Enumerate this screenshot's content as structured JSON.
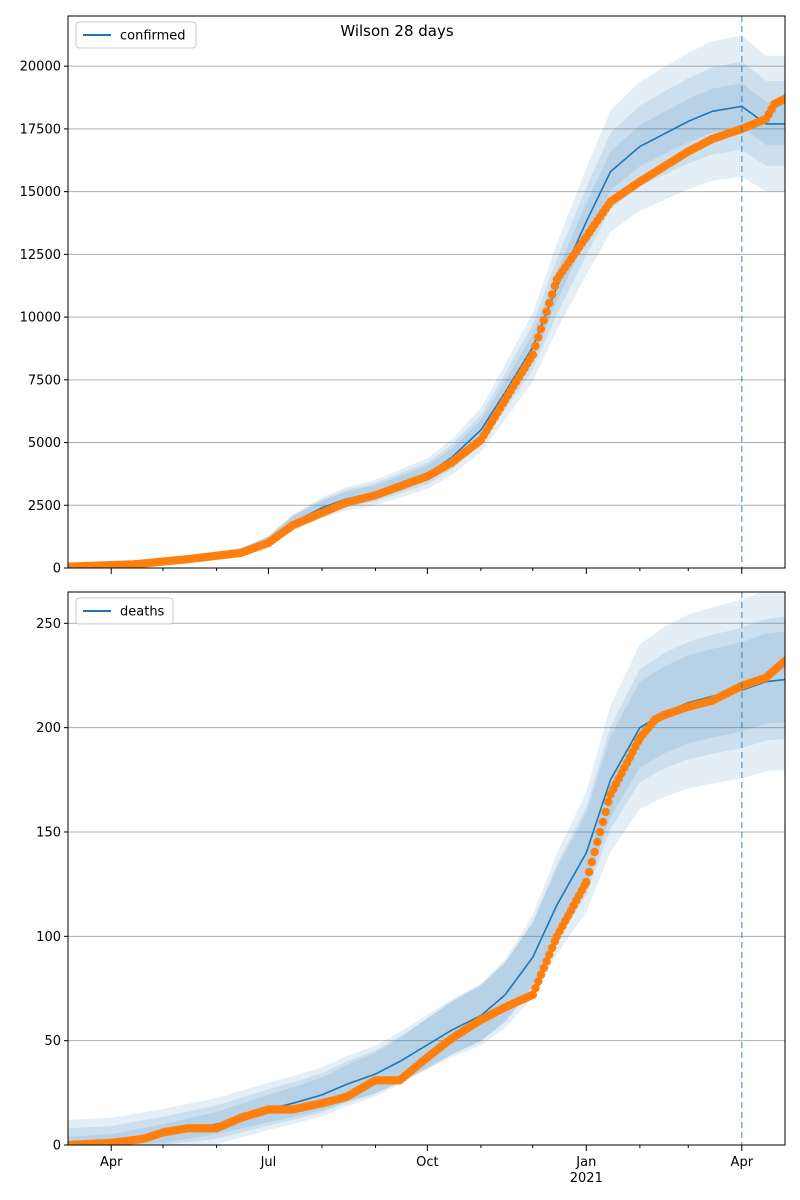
{
  "figure": {
    "title": "Wilson 28 days"
  },
  "colors": {
    "model": "#1f77b4",
    "observed": "#ff7f0e",
    "band": "#1f77b4",
    "grid": "#b0b0b0",
    "forecast_line": "#1f77b4"
  },
  "chart_data": [
    {
      "type": "line",
      "legend": "confirmed",
      "legend_position": "top-left",
      "grid": "horizontal",
      "x_range": [
        "2020-03-07",
        "2021-04-26"
      ],
      "ylim": [
        0,
        22000
      ],
      "y_ticks": [
        0,
        2500,
        5000,
        7500,
        10000,
        12500,
        15000,
        17500,
        20000
      ],
      "y_tick_labels": [
        "0",
        "2500",
        "5000",
        "7500",
        "10000",
        "12500",
        "15000",
        "17500",
        "20000"
      ],
      "forecast_start": "2021-04-01",
      "model_median": {
        "x": [
          "2020-03-07",
          "2020-04-15",
          "2020-05-15",
          "2020-06-15",
          "2020-07-01",
          "2020-07-15",
          "2020-08-01",
          "2020-08-15",
          "2020-09-01",
          "2020-09-15",
          "2020-10-01",
          "2020-10-15",
          "2020-11-01",
          "2020-11-15",
          "2020-12-01",
          "2020-12-15",
          "2021-01-01",
          "2021-01-15",
          "2021-02-01",
          "2021-02-15",
          "2021-03-01",
          "2021-03-15",
          "2021-04-01",
          "2021-04-15",
          "2021-04-26"
        ],
        "values": [
          50,
          120,
          300,
          600,
          1050,
          1800,
          2400,
          2750,
          3000,
          3350,
          3750,
          4400,
          5500,
          7000,
          8800,
          11200,
          13800,
          15800,
          16800,
          17300,
          17800,
          18200,
          18400,
          17700,
          17700
        ]
      },
      "bands_half_width": [
        0.04,
        0.09,
        0.15
      ],
      "observed": {
        "x": [
          "2020-03-07",
          "2020-04-15",
          "2020-05-15",
          "2020-06-15",
          "2020-07-01",
          "2020-07-15",
          "2020-08-01",
          "2020-08-15",
          "2020-09-01",
          "2020-09-15",
          "2020-10-01",
          "2020-10-15",
          "2020-11-01",
          "2020-11-15",
          "2020-12-01",
          "2020-12-15",
          "2021-01-01",
          "2021-01-15",
          "2021-02-01",
          "2021-02-15",
          "2021-03-01",
          "2021-03-15",
          "2021-04-01",
          "2021-04-15",
          "2021-04-20",
          "2021-04-26"
        ],
        "values": [
          50,
          150,
          350,
          600,
          1000,
          1700,
          2200,
          2600,
          2900,
          3250,
          3650,
          4200,
          5100,
          6700,
          8500,
          11500,
          13200,
          14600,
          15400,
          16000,
          16600,
          17100,
          17500,
          17900,
          18500,
          18700
        ]
      }
    },
    {
      "type": "line",
      "legend": "deaths",
      "legend_position": "top-left",
      "grid": "horizontal",
      "x_range": [
        "2020-03-07",
        "2021-04-26"
      ],
      "ylim": [
        0,
        265
      ],
      "y_ticks": [
        0,
        50,
        100,
        150,
        200,
        250
      ],
      "y_tick_labels": [
        "0",
        "50",
        "100",
        "150",
        "200",
        "250"
      ],
      "forecast_start": "2021-04-01",
      "x_tick_labels": [
        "Apr",
        "Jul",
        "Oct",
        "Jan",
        "Apr"
      ],
      "x_year_label": "2021",
      "model_median": {
        "x": [
          "2020-03-07",
          "2020-04-01",
          "2020-05-01",
          "2020-06-01",
          "2020-07-01",
          "2020-07-15",
          "2020-08-01",
          "2020-08-15",
          "2020-09-01",
          "2020-09-15",
          "2020-10-01",
          "2020-10-15",
          "2020-11-01",
          "2020-11-15",
          "2020-12-01",
          "2020-12-15",
          "2021-01-01",
          "2021-01-15",
          "2021-02-01",
          "2021-02-15",
          "2021-03-01",
          "2021-03-15",
          "2021-04-01",
          "2021-04-15",
          "2021-04-26"
        ],
        "values": [
          0,
          1,
          5,
          10,
          17,
          20,
          24,
          29,
          34,
          40,
          48,
          55,
          62,
          72,
          90,
          115,
          140,
          175,
          200,
          207,
          212,
          215,
          218,
          222,
          223
        ]
      },
      "bands_half_width": [
        0.05,
        0.1,
        0.18
      ],
      "observed": {
        "x": [
          "2020-03-07",
          "2020-04-01",
          "2020-04-20",
          "2020-05-01",
          "2020-05-15",
          "2020-06-01",
          "2020-06-15",
          "2020-07-01",
          "2020-07-15",
          "2020-08-01",
          "2020-08-15",
          "2020-09-01",
          "2020-09-15",
          "2020-10-01",
          "2020-10-15",
          "2020-11-01",
          "2020-11-15",
          "2020-12-01",
          "2020-12-15",
          "2021-01-01",
          "2021-01-15",
          "2021-02-01",
          "2021-02-10",
          "2021-02-15",
          "2021-03-01",
          "2021-03-15",
          "2021-04-01",
          "2021-04-15",
          "2021-04-26"
        ],
        "values": [
          0,
          1,
          3,
          6,
          8,
          8,
          13,
          17,
          17,
          20,
          23,
          31,
          31,
          42,
          51,
          60,
          66,
          72,
          100,
          126,
          168,
          195,
          204,
          206,
          210,
          213,
          220,
          224,
          232
        ]
      }
    }
  ]
}
